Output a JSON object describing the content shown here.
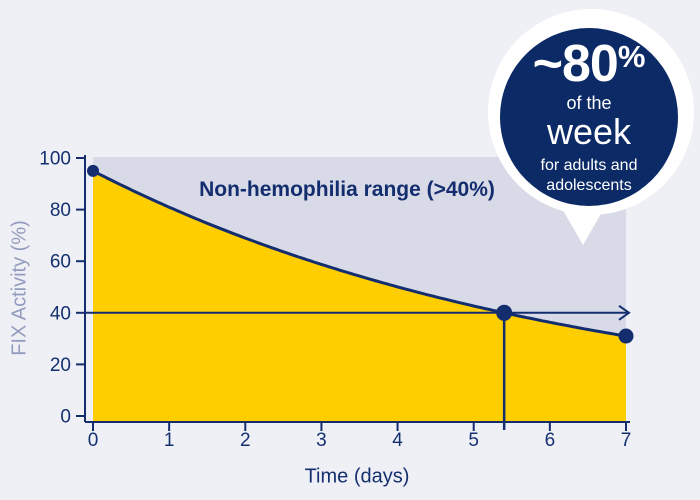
{
  "colors": {
    "page_background": "#eef0f5",
    "plot_background": "#d8dbe7",
    "area_yellow": "#ffce00",
    "navy": "#132d6e",
    "circle_navy": "#0c2a66",
    "white": "#ffffff",
    "y_axis_title_muted": "#939cbe"
  },
  "chart_data": {
    "type": "area",
    "title": "",
    "xlabel": "Time (days)",
    "ylabel": "FIX Activity (%)",
    "xlim": [
      0,
      7
    ],
    "ylim": [
      0,
      100
    ],
    "x_ticks": [
      0,
      1,
      2,
      3,
      4,
      5,
      6,
      7
    ],
    "y_ticks": [
      0,
      20,
      40,
      60,
      80,
      100
    ],
    "grid": false,
    "legend": false,
    "annotation": "Non-hemophilia range (>40%)",
    "threshold_value": 40,
    "threshold_crossing_x": 5.4,
    "threshold_arrow": "right",
    "curve_model": {
      "type": "exponential_decay",
      "v0": 95,
      "k": 0.1602
    },
    "series": [
      {
        "name": "FIX Activity",
        "x": [
          0,
          1,
          2,
          3,
          4,
          5,
          5.4,
          6,
          7
        ],
        "values": [
          95,
          80.9,
          69.0,
          58.8,
          50.1,
          42.7,
          40.0,
          36.4,
          31.0
        ]
      }
    ],
    "markers": [
      {
        "x": 0,
        "y": 95
      },
      {
        "x": 5.4,
        "y": 40
      },
      {
        "x": 7,
        "y": 31
      }
    ]
  },
  "callout": {
    "value": "~80",
    "percent_sign": "%",
    "line2": "of the",
    "line3": "week",
    "line4": "for adults and",
    "line5": "adolescents"
  }
}
